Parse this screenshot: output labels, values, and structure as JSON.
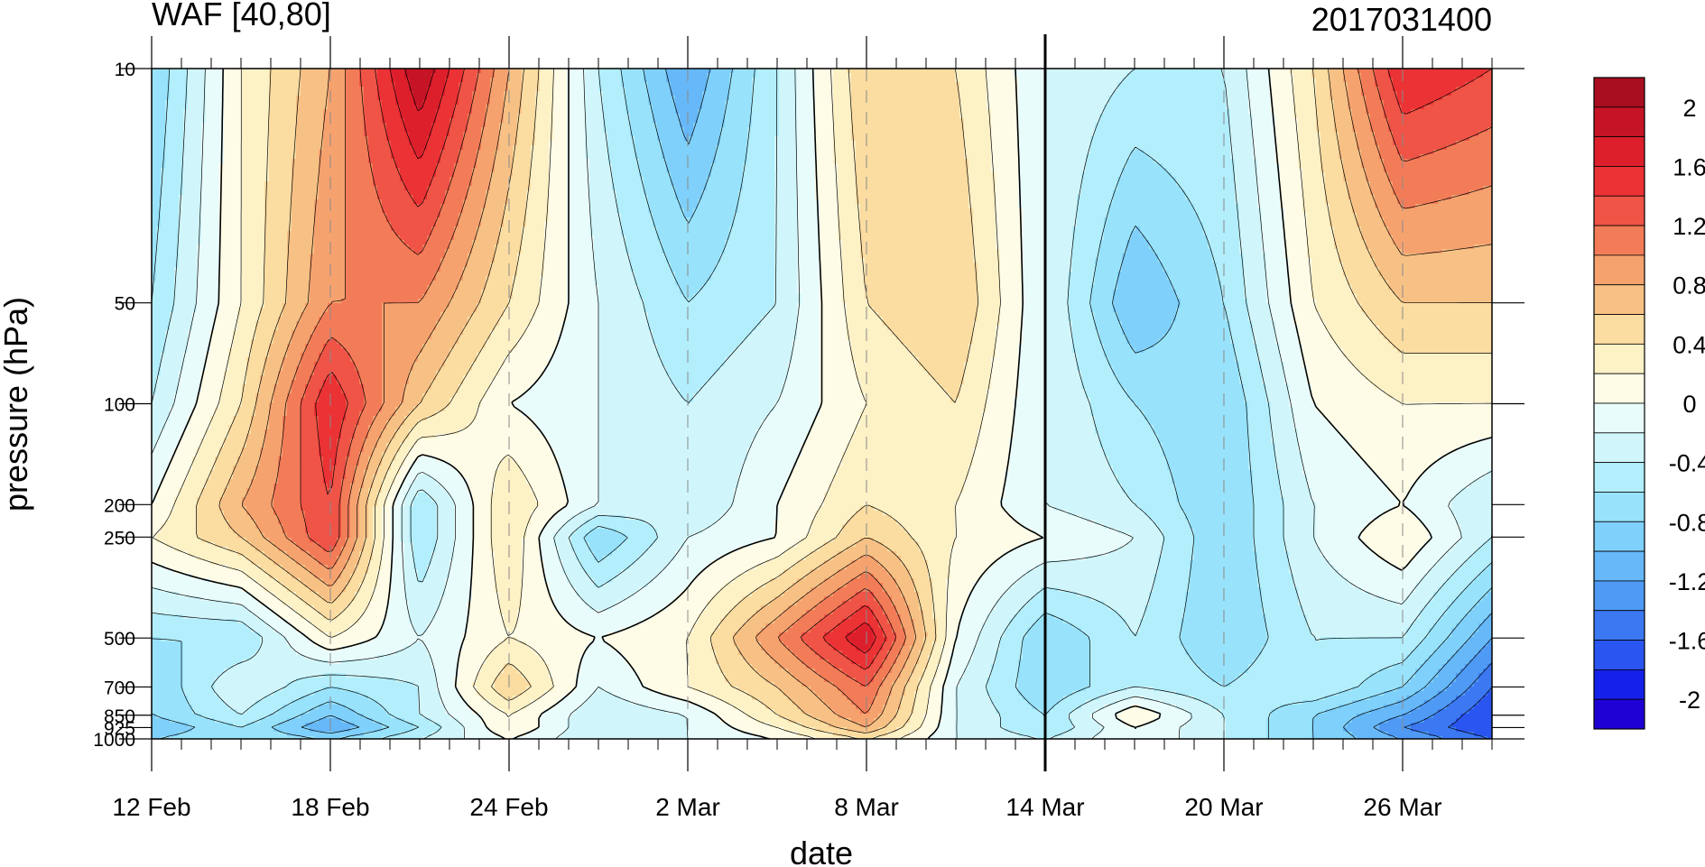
{
  "chart_data": {
    "type": "heatmap",
    "title_left": "WAF [40,80]",
    "title_right": "2017031400",
    "xlabel": "date",
    "ylabel": "pressure (hPa)",
    "x_ticks": [
      "12 Feb",
      "18 Feb",
      "24 Feb",
      "2 Mar",
      "8 Mar",
      "14 Mar",
      "20 Mar",
      "26 Mar"
    ],
    "y_ticks": [
      10,
      50,
      100,
      200,
      250,
      500,
      700,
      850,
      925,
      1000
    ],
    "y_tick_labels": [
      "10",
      "50",
      "100",
      "200",
      "250",
      "500",
      "700",
      "850",
      "925",
      "1000"
    ],
    "y_scale": "log",
    "ylim": [
      1000,
      10
    ],
    "x_range": [
      "2017-02-12",
      "2017-03-29"
    ],
    "marked_date": "2017-03-14",
    "contour_levels": [
      -2.2,
      -2,
      -1.8,
      -1.6,
      -1.4,
      -1.2,
      -1,
      -0.8,
      -0.6,
      -0.4,
      -0.2,
      0,
      0.2,
      0.4,
      0.6,
      0.8,
      1,
      1.2,
      1.4,
      1.6,
      1.8,
      2
    ],
    "colorbar_labels": [
      "2",
      "1.6",
      "1.2",
      "0.8",
      "0.4",
      "0",
      "-0.4",
      "-0.8",
      "-1.2",
      "-1.6",
      "-2"
    ],
    "colormap": [
      "#1f00d4",
      "#1520e8",
      "#2a55f0",
      "#3b78f2",
      "#4f9af5",
      "#66b8f8",
      "#7fd0fa",
      "#98e3fb",
      "#b2eefc",
      "#d0f6fb",
      "#e9fcfc",
      "#fefce6",
      "#fdf1c6",
      "#fbdca1",
      "#f7c185",
      "#f6a26f",
      "#f37c58",
      "#ef5447",
      "#eb3235",
      "#dd1f2c",
      "#c41425",
      "#a80e1f"
    ],
    "grid_dates": {
      "dates": [
        "2017-02-12",
        "2017-02-15",
        "2017-02-18",
        "2017-02-21",
        "2017-02-24",
        "2017-02-27",
        "2017-03-02",
        "2017-03-05",
        "2017-03-08",
        "2017-03-11",
        "2017-03-14",
        "2017-03-17",
        "2017-03-20",
        "2017-03-23",
        "2017-03-26",
        "2017-03-29"
      ],
      "pressure": [
        10,
        50,
        100,
        200,
        250,
        500,
        700,
        850,
        925,
        1000
      ],
      "values": [
        [
          -0.8,
          0.2,
          0.8,
          2.0,
          0.8,
          -0.4,
          -1.2,
          -0.4,
          0.6,
          0.4,
          -0.2,
          -0.4,
          -0.4,
          0.4,
          1.6,
          1.4
        ],
        [
          -0.6,
          0.2,
          1.0,
          1.0,
          0.4,
          -0.2,
          -0.6,
          -0.4,
          0.4,
          0.6,
          -0.2,
          -1.0,
          -0.6,
          0.2,
          0.6,
          0.6
        ],
        [
          -0.4,
          0.4,
          1.6,
          0.6,
          0.0,
          -0.2,
          -0.4,
          -0.2,
          0.2,
          0.4,
          -0.2,
          -0.6,
          -0.8,
          0.0,
          0.2,
          0.2
        ],
        [
          0.0,
          0.8,
          1.4,
          -0.6,
          0.4,
          -0.2,
          -0.4,
          0.0,
          0.4,
          0.2,
          -0.2,
          -0.4,
          -0.8,
          -0.2,
          0.0,
          -0.4
        ],
        [
          0.2,
          0.6,
          1.4,
          -0.6,
          0.4,
          -0.8,
          -0.2,
          0.0,
          0.6,
          0.2,
          0.0,
          -0.2,
          -0.8,
          -0.2,
          0.2,
          -0.4
        ],
        [
          -0.6,
          -0.6,
          0.2,
          -0.2,
          0.2,
          0.0,
          0.2,
          1.0,
          1.8,
          0.0,
          -0.8,
          -0.4,
          -0.8,
          -0.4,
          -0.4,
          -1.2
        ],
        [
          -0.8,
          -0.2,
          -0.6,
          -0.4,
          0.6,
          -0.2,
          0.2,
          0.6,
          1.2,
          -0.2,
          -0.8,
          -0.4,
          -0.6,
          -0.4,
          -0.8,
          -1.6
        ],
        [
          -0.8,
          -0.4,
          -1.0,
          -0.4,
          0.2,
          -0.4,
          -0.2,
          0.4,
          1.0,
          -0.2,
          -0.6,
          0.2,
          -0.4,
          -0.8,
          -1.2,
          -1.8
        ],
        [
          -1.0,
          -0.6,
          -1.2,
          -0.6,
          0.2,
          -0.4,
          -0.2,
          0.2,
          0.8,
          -0.2,
          -0.6,
          0.0,
          -0.4,
          -0.8,
          -1.4,
          -1.8
        ],
        [
          -0.8,
          -0.6,
          -0.8,
          -0.4,
          0.0,
          -0.4,
          -0.2,
          0.0,
          0.4,
          -0.2,
          -0.4,
          0.0,
          -0.4,
          -0.8,
          -1.2,
          -1.6
        ]
      ]
    }
  }
}
